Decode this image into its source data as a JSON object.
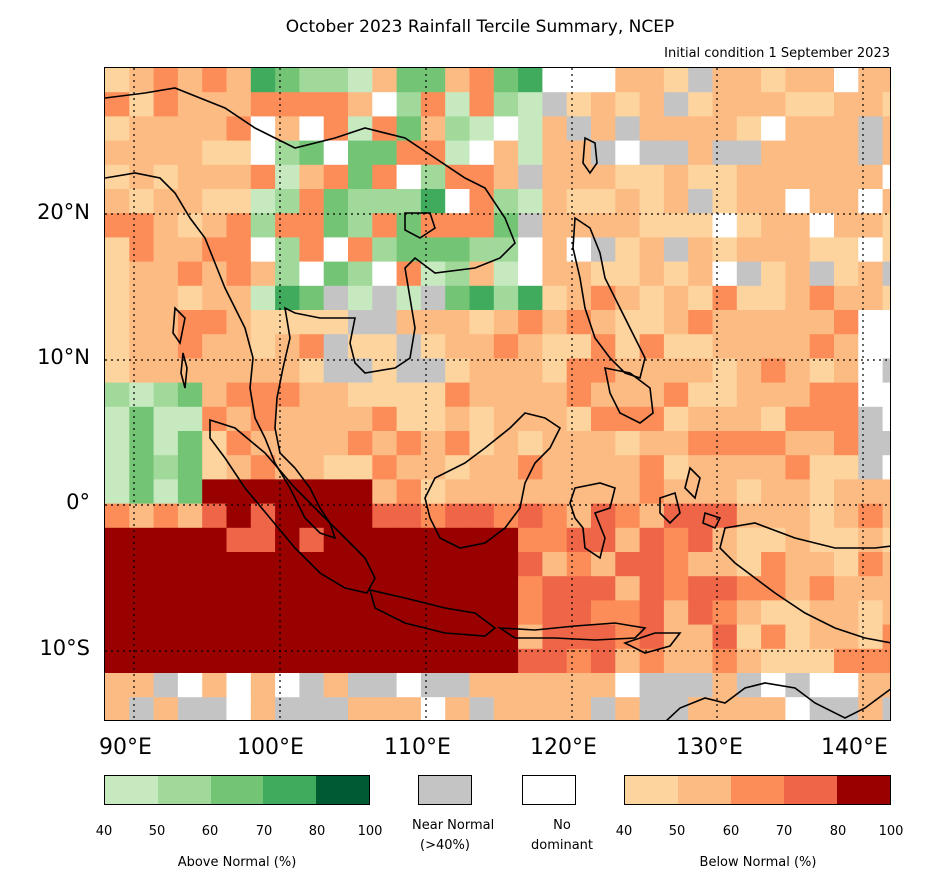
{
  "title": "October 2023 Rainfall Tercile Summary, NCEP",
  "subtitle": "Initial condition 1 September 2023",
  "axes": {
    "lat_labels": [
      "20°N",
      "10°N",
      "0°",
      "10°S"
    ],
    "lon_labels": [
      "90°E",
      "100°E",
      "110°E",
      "120°E",
      "130°E",
      "140°E"
    ],
    "lon_range": [
      88,
      142
    ],
    "lat_range": [
      -15,
      30
    ]
  },
  "legend": {
    "above": {
      "caption": "Above Normal (%)",
      "ticks": [
        "40",
        "50",
        "60",
        "70",
        "80",
        "100"
      ],
      "colors": [
        "#c7e9c0",
        "#a1d99b",
        "#74c476",
        "#41ab5d",
        "#005a32"
      ]
    },
    "near": {
      "caption_line1": "Near Normal",
      "caption_line2": "(>40%)",
      "color": "#c4c4c4"
    },
    "none": {
      "caption_line1": "No",
      "caption_line2": "dominant",
      "color": "#ffffff"
    },
    "below": {
      "caption": "Below Normal (%)",
      "ticks": [
        "40",
        "50",
        "60",
        "70",
        "80",
        "100"
      ],
      "colors": [
        "#fdd49e",
        "#fdbb84",
        "#fc8d59",
        "#ef6548",
        "#990000"
      ]
    }
  }
}
